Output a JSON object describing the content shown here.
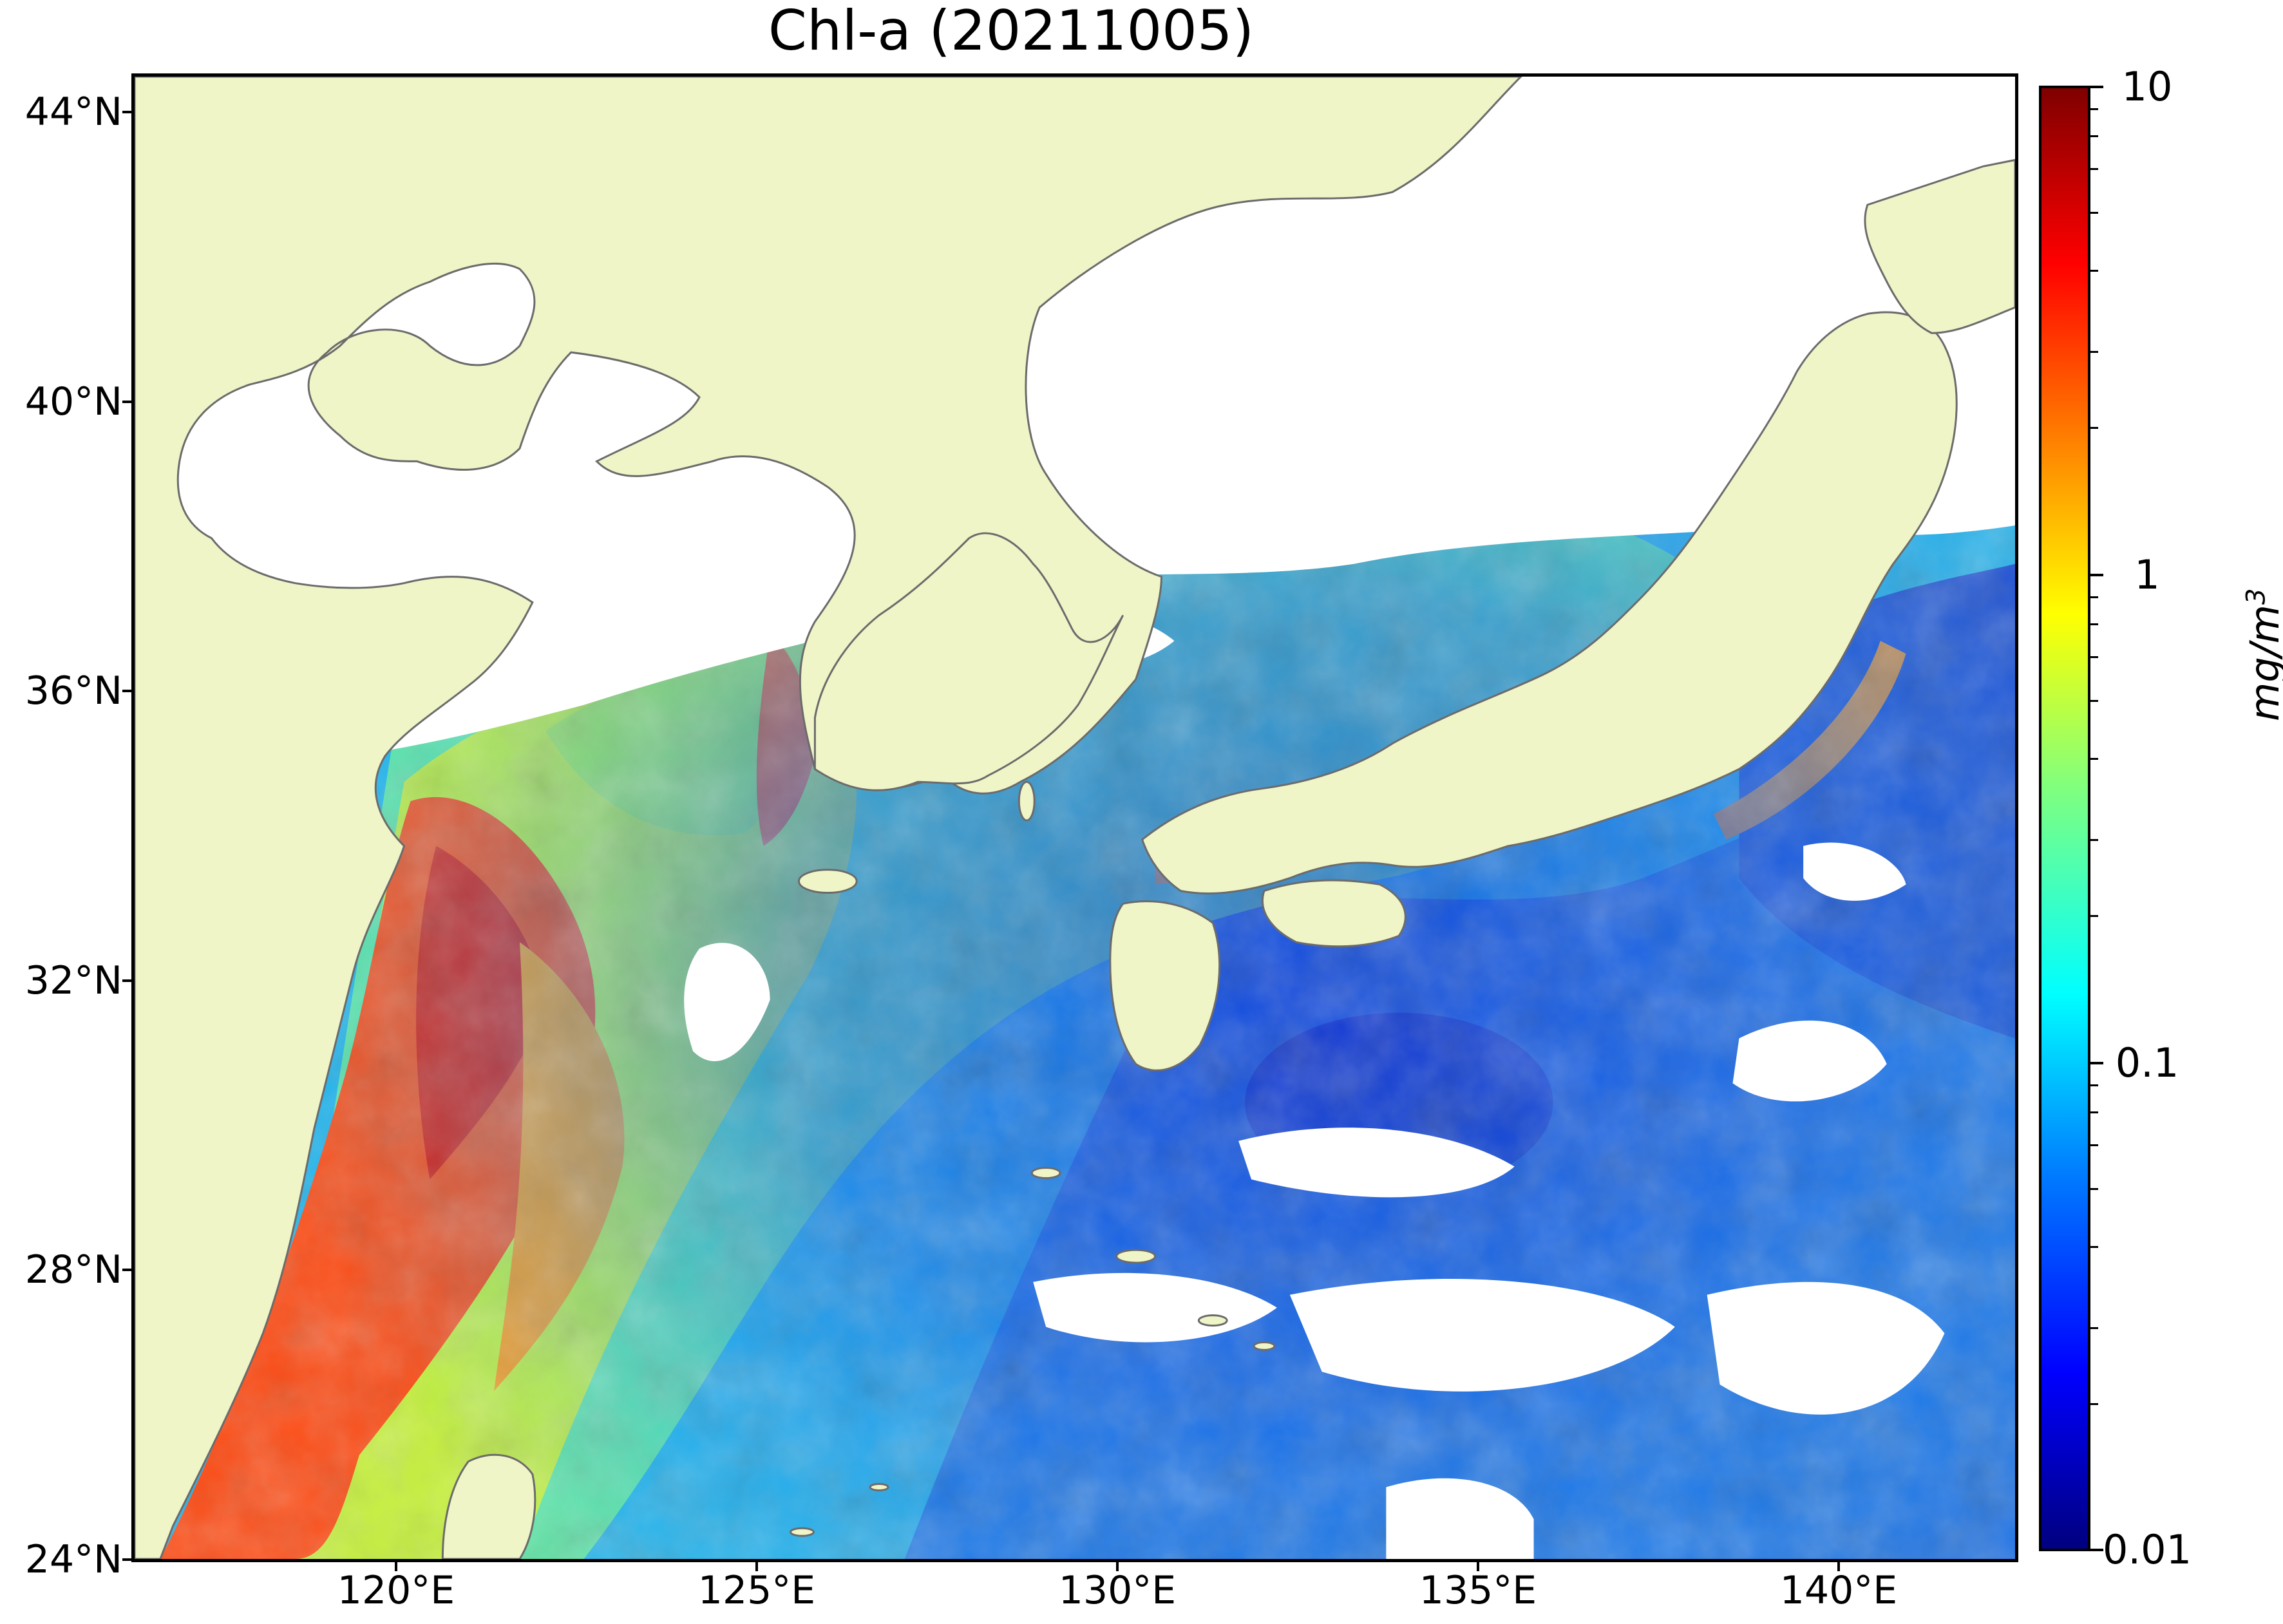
{
  "title": "Chl-a (20211005)",
  "latitude_labels": [
    "44°N",
    "40°N",
    "36°N",
    "32°N",
    "28°N",
    "24°N"
  ],
  "longitude_labels": [
    "120°E",
    "125°E",
    "130°E",
    "135°E",
    "140°E"
  ],
  "colorbar": {
    "unit_prefix": "mg/m",
    "unit_exponent": "3",
    "tick_labels": [
      "10",
      "1",
      "0.1",
      "0.01"
    ],
    "scale": "log",
    "range": [
      0.01,
      10
    ]
  },
  "colors": {
    "land": "#f0f5c8",
    "coastline": "#6b6b6b",
    "no_data": "#ffffff"
  }
}
